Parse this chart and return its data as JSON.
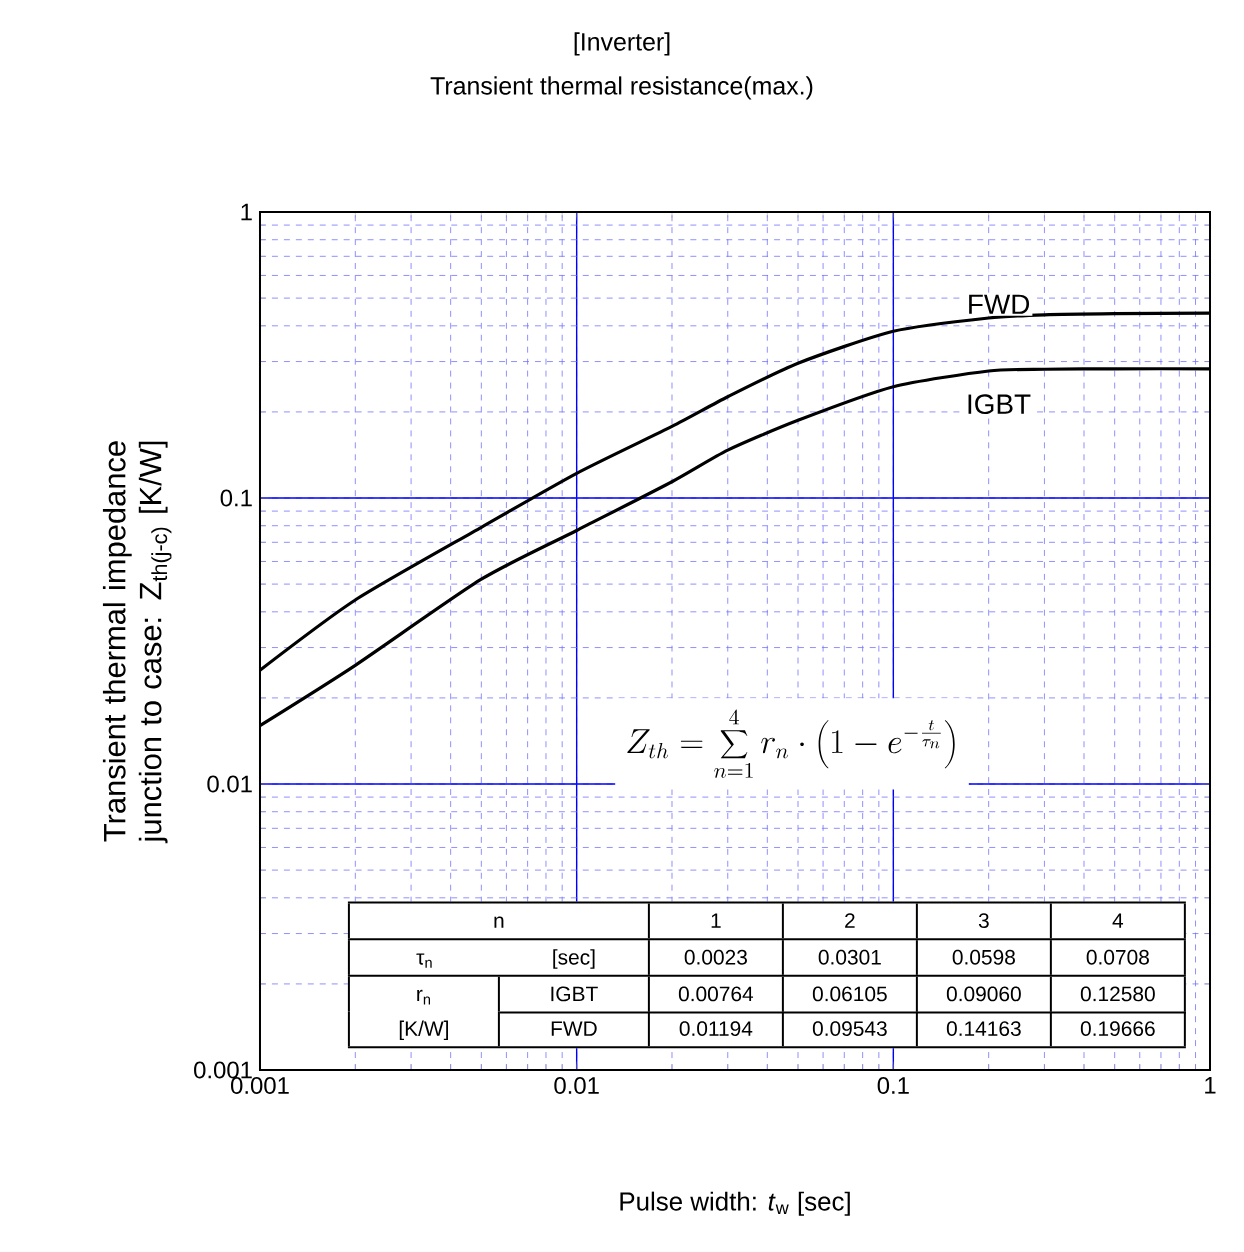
{
  "chart_data": {
    "type": "line",
    "title": "[Inverter]",
    "subtitle": "Transient thermal resistance(max.)",
    "xlabel": "Pulse width: *t*$_{w}$ [sec]",
    "ylabel": "Transient thermal impedance junction to case: Z$_{th(j-c)}$  [K/W]",
    "x": [
      0.001,
      0.002,
      0.005,
      0.01,
      0.02,
      0.03,
      0.05,
      0.1,
      0.2,
      0.3,
      0.5,
      1
    ],
    "series": [
      {
        "name": "FWD",
        "color": "#000000",
        "values": [
          0.025,
          0.044,
          0.079,
          0.122,
          0.178,
          0.226,
          0.296,
          0.383,
          0.426,
          0.437,
          0.441,
          0.443
        ]
      },
      {
        "name": "IGBT",
        "color": "#000000",
        "values": [
          0.016,
          0.026,
          0.052,
          0.077,
          0.114,
          0.147,
          0.187,
          0.245,
          0.278,
          0.282,
          0.283,
          0.283
        ]
      }
    ],
    "log": "xy",
    "grid": true,
    "xlim": [
      0.001,
      1
    ],
    "ylim": [
      0.001,
      1
    ],
    "xticks": [
      0.001,
      0.01,
      0.1,
      1
    ],
    "yticks": [
      0.001,
      0.01,
      0.1,
      1
    ],
    "annotations": [
      "n",
      "1",
      "2",
      "3",
      "4",
      "τ$_{n}$",
      "[sec]",
      "0.0023",
      "0.0301",
      "0.0598",
      "0.0708",
      "r$_{n}$",
      "[K/W]",
      "IGBT",
      "0.00764",
      "0.06105",
      "0.09060",
      "0.12580",
      "FWD",
      "0.01194",
      "0.09543",
      "0.14163",
      "0.19666",
      "Z_{th} = \\sum_{n=1}^{4} r_n \\cdot \\left(1 - e^{-\\frac{t}{\\tau_n}}\\right)"
    ]
  }
}
